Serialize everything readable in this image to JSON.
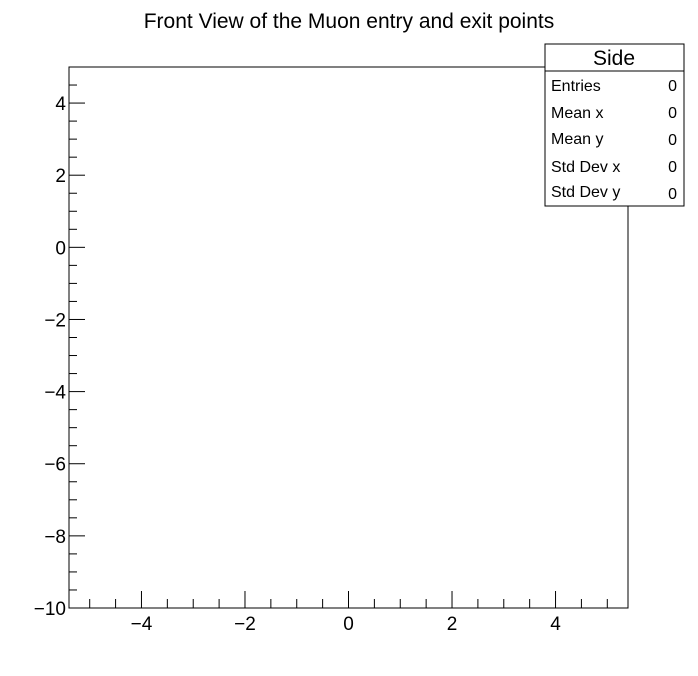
{
  "chart_data": {
    "type": "scatter",
    "title": "Front View of the Muon entry and exit points",
    "xlabel": "",
    "ylabel": "",
    "xlim": [
      -5.4,
      5.4
    ],
    "ylim": [
      -10,
      5
    ],
    "x_major_ticks": [
      -4,
      -2,
      0,
      2,
      4
    ],
    "x_tick_labels": [
      "−4",
      "−2",
      "0",
      "2",
      "4"
    ],
    "x_minor_step": 0.5,
    "y_major_ticks": [
      -10,
      -8,
      -6,
      -4,
      -2,
      0,
      2,
      4
    ],
    "y_tick_labels": [
      "−10",
      "−8",
      "−6",
      "−4",
      "−2",
      "0",
      "2",
      "4"
    ],
    "y_minor_step": 0.5,
    "grid": false,
    "series": [
      {
        "points": []
      }
    ],
    "stats_box": {
      "name": "Side",
      "placement": "top-right",
      "rows": [
        {
          "label": "Entries",
          "value": "0"
        },
        {
          "label": "Mean x",
          "value": "0"
        },
        {
          "label": "Mean y",
          "value": "0"
        },
        {
          "label": "Std Dev x",
          "value": "0"
        },
        {
          "label": "Std Dev y",
          "value": "0"
        }
      ]
    }
  }
}
